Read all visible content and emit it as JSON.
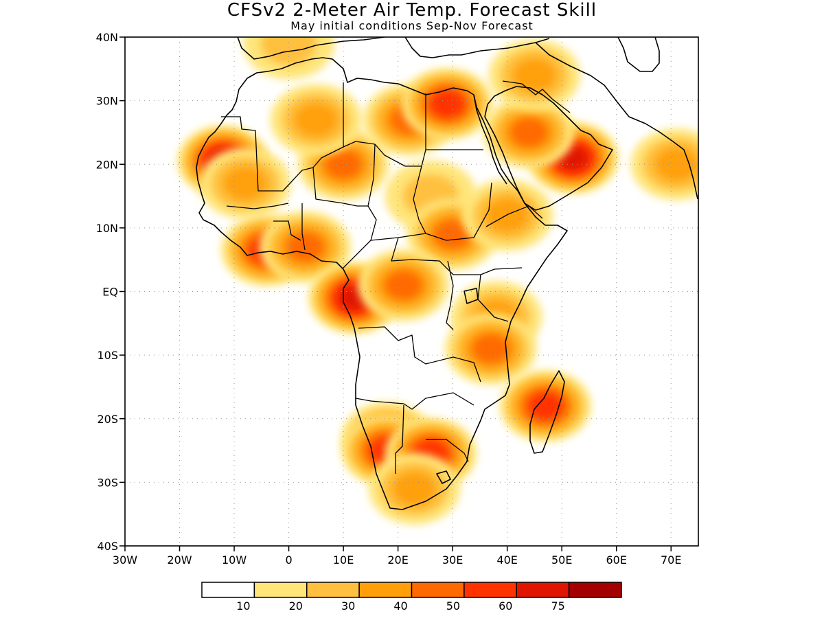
{
  "title": "CFSv2 2-Meter Air Temp. Forecast Skill",
  "subtitle": "May initial conditions  Sep-Nov Forecast",
  "map": {
    "lon_range": [
      -30,
      75
    ],
    "lat_range": [
      -40,
      40
    ],
    "lat_ticks": [
      {
        "value": 40,
        "label": "40N"
      },
      {
        "value": 30,
        "label": "30N"
      },
      {
        "value": 20,
        "label": "20N"
      },
      {
        "value": 10,
        "label": "10N"
      },
      {
        "value": 0,
        "label": "EQ"
      },
      {
        "value": -10,
        "label": "10S"
      },
      {
        "value": -20,
        "label": "20S"
      },
      {
        "value": -30,
        "label": "30S"
      },
      {
        "value": -40,
        "label": "40S"
      }
    ],
    "lon_ticks": [
      {
        "value": -30,
        "label": "30W"
      },
      {
        "value": -20,
        "label": "20W"
      },
      {
        "value": -10,
        "label": "10W"
      },
      {
        "value": 0,
        "label": "0"
      },
      {
        "value": 10,
        "label": "10E"
      },
      {
        "value": 20,
        "label": "20E"
      },
      {
        "value": 30,
        "label": "30E"
      },
      {
        "value": 40,
        "label": "40E"
      },
      {
        "value": 50,
        "label": "50E"
      },
      {
        "value": 60,
        "label": "60E"
      },
      {
        "value": 70,
        "label": "70E"
      }
    ],
    "grid": true,
    "coastline_color": "#000000"
  },
  "colorbar": {
    "colors": [
      "#ffffff",
      "#ffe57a",
      "#ffc040",
      "#ffa00a",
      "#ff6a00",
      "#ff3300",
      "#e01500",
      "#a50000"
    ],
    "labels": [
      "10",
      "20",
      "30",
      "40",
      "50",
      "60",
      "75"
    ]
  },
  "skill_regions": [
    {
      "lon": -12,
      "lat": 20.5,
      "value": 60
    },
    {
      "lon": -8,
      "lat": 17,
      "value": 35
    },
    {
      "lon": 10,
      "lat": 20,
      "value": 40
    },
    {
      "lon": 5,
      "lat": 27,
      "value": 30
    },
    {
      "lon": 22,
      "lat": 27,
      "value": 40
    },
    {
      "lon": 29,
      "lat": 29.5,
      "value": 55
    },
    {
      "lon": 52,
      "lat": 21,
      "value": 60
    },
    {
      "lon": 44,
      "lat": 25,
      "value": 40
    },
    {
      "lon": 45,
      "lat": 34,
      "value": 30
    },
    {
      "lon": 26,
      "lat": 15,
      "value": 25
    },
    {
      "lon": 30,
      "lat": 9,
      "value": 40
    },
    {
      "lon": -4,
      "lat": 6.5,
      "value": 50
    },
    {
      "lon": 3,
      "lat": 7,
      "value": 40
    },
    {
      "lon": 12,
      "lat": -1,
      "value": 60
    },
    {
      "lon": 21,
      "lat": 1,
      "value": 45
    },
    {
      "lon": 38,
      "lat": -4,
      "value": 35
    },
    {
      "lon": 37,
      "lat": -9,
      "value": 40
    },
    {
      "lon": 18,
      "lat": -23,
      "value": 45
    },
    {
      "lon": 18,
      "lat": -25,
      "value": 55
    },
    {
      "lon": 26,
      "lat": -25.5,
      "value": 55
    },
    {
      "lon": 23,
      "lat": -31,
      "value": 30
    },
    {
      "lon": 47,
      "lat": -18,
      "value": 50
    },
    {
      "lon": 40,
      "lat": 12,
      "value": 30
    },
    {
      "lon": 0,
      "lat": 39,
      "value": 25
    },
    {
      "lon": 71,
      "lat": 20,
      "value": 30
    }
  ]
}
